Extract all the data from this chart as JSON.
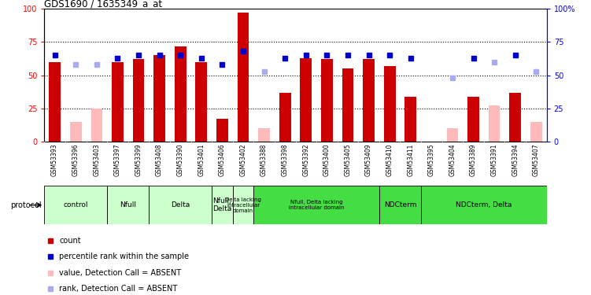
{
  "title": "GDS1690 / 1635349_a_at",
  "samples": [
    "GSM53393",
    "GSM53396",
    "GSM53403",
    "GSM53397",
    "GSM53399",
    "GSM53408",
    "GSM53390",
    "GSM53401",
    "GSM53406",
    "GSM53402",
    "GSM53388",
    "GSM53398",
    "GSM53392",
    "GSM53400",
    "GSM53405",
    "GSM53409",
    "GSM53410",
    "GSM53411",
    "GSM53395",
    "GSM53404",
    "GSM53389",
    "GSM53391",
    "GSM53394",
    "GSM53407"
  ],
  "count_values": [
    60,
    null,
    null,
    60,
    62,
    65,
    72,
    60,
    17,
    97,
    null,
    37,
    63,
    62,
    55,
    62,
    57,
    34,
    null,
    null,
    34,
    null,
    37,
    null
  ],
  "count_absent": [
    null,
    15,
    25,
    null,
    null,
    null,
    null,
    null,
    null,
    null,
    10,
    null,
    null,
    null,
    null,
    null,
    null,
    null,
    null,
    10,
    null,
    27,
    null,
    15
  ],
  "rank_values": [
    65,
    null,
    null,
    63,
    65,
    65,
    65,
    63,
    58,
    68,
    null,
    63,
    65,
    65,
    65,
    65,
    65,
    63,
    null,
    null,
    63,
    null,
    65,
    null
  ],
  "rank_absent": [
    null,
    58,
    58,
    null,
    null,
    null,
    null,
    null,
    null,
    null,
    53,
    null,
    null,
    null,
    null,
    null,
    null,
    null,
    null,
    48,
    null,
    60,
    null,
    53
  ],
  "group_defs": [
    [
      0,
      3,
      "control",
      "#ccffcc"
    ],
    [
      3,
      5,
      "Nfull",
      "#ccffcc"
    ],
    [
      5,
      8,
      "Delta",
      "#ccffcc"
    ],
    [
      8,
      9,
      "Nfull,\nDelta",
      "#ccffcc"
    ],
    [
      9,
      10,
      "Delta lacking\nintracellular\ndomain",
      "#ccffcc"
    ],
    [
      10,
      16,
      "Nfull, Delta lacking\nintracellular domain",
      "#44dd44"
    ],
    [
      16,
      18,
      "NDCterm",
      "#44dd44"
    ],
    [
      18,
      24,
      "NDCterm, Delta",
      "#44dd44"
    ]
  ],
  "ylim": [
    0,
    100
  ],
  "yticks": [
    0,
    25,
    50,
    75,
    100
  ],
  "dotted_lines": [
    25,
    50,
    75
  ],
  "bar_color": "#cc0000",
  "bar_absent_color": "#ffbbbb",
  "rank_color": "#0000cc",
  "rank_absent_color": "#aaaaee",
  "legend_items": [
    [
      "#cc0000",
      "count"
    ],
    [
      "#0000cc",
      "percentile rank within the sample"
    ],
    [
      "#ffbbbb",
      "value, Detection Call = ABSENT"
    ],
    [
      "#aaaaee",
      "rank, Detection Call = ABSENT"
    ]
  ]
}
